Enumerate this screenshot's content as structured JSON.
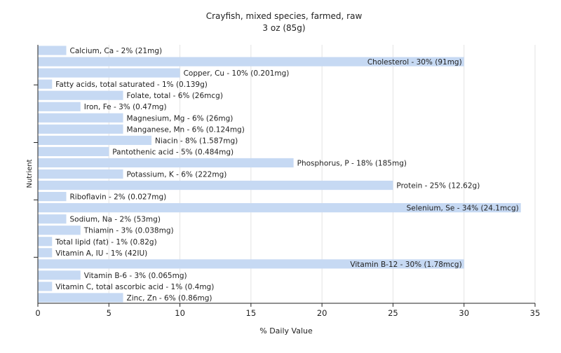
{
  "chart_data": {
    "type": "bar",
    "orientation": "horizontal",
    "title": "Crayfish, mixed species, farmed, raw",
    "subtitle": "3 oz (85g)",
    "xlabel": "% Daily Value",
    "ylabel": "Nutrient",
    "xlim": [
      0,
      35
    ],
    "xticks": [
      "0",
      "5",
      "10",
      "15",
      "20",
      "25",
      "30",
      "35"
    ],
    "grid": true,
    "bar_color": "#c6d9f3",
    "categories": [
      "Calcium, Ca",
      "Cholesterol",
      "Copper, Cu",
      "Fatty acids, total saturated",
      "Folate, total",
      "Iron, Fe",
      "Magnesium, Mg",
      "Manganese, Mn",
      "Niacin",
      "Pantothenic acid",
      "Phosphorus, P",
      "Potassium, K",
      "Protein",
      "Riboflavin",
      "Selenium, Se",
      "Sodium, Na",
      "Thiamin",
      "Total lipid (fat)",
      "Vitamin A, IU",
      "Vitamin B-12",
      "Vitamin B-6",
      "Vitamin C, total ascorbic acid",
      "Zinc, Zn"
    ],
    "values": [
      2,
      30,
      10,
      1,
      6,
      3,
      6,
      6,
      8,
      5,
      18,
      6,
      25,
      2,
      34,
      2,
      3,
      1,
      1,
      30,
      3,
      1,
      6
    ],
    "labels": [
      "Calcium, Ca - 2% (21mg)",
      "Cholesterol - 30% (91mg)",
      "Copper, Cu - 10% (0.201mg)",
      "Fatty acids, total saturated - 1% (0.139g)",
      "Folate, total - 6% (26mcg)",
      "Iron, Fe - 3% (0.47mg)",
      "Magnesium, Mg - 6% (26mg)",
      "Manganese, Mn - 6% (0.124mg)",
      "Niacin - 8% (1.587mg)",
      "Pantothenic acid - 5% (0.484mg)",
      "Phosphorus, P - 18% (185mg)",
      "Potassium, K - 6% (222mg)",
      "Protein - 25% (12.62g)",
      "Riboflavin - 2% (0.027mg)",
      "Selenium, Se - 34% (24.1mcg)",
      "Sodium, Na - 2% (53mg)",
      "Thiamin - 3% (0.038mg)",
      "Total lipid (fat) - 1% (0.82g)",
      "Vitamin A, IU - 1% (42IU)",
      "Vitamin B-12 - 30% (1.78mcg)",
      "Vitamin B-6 - 3% (0.065mg)",
      "Vitamin C, total ascorbic acid - 1% (0.4mg)",
      "Zinc, Zn - 6% (0.86mg)"
    ]
  }
}
